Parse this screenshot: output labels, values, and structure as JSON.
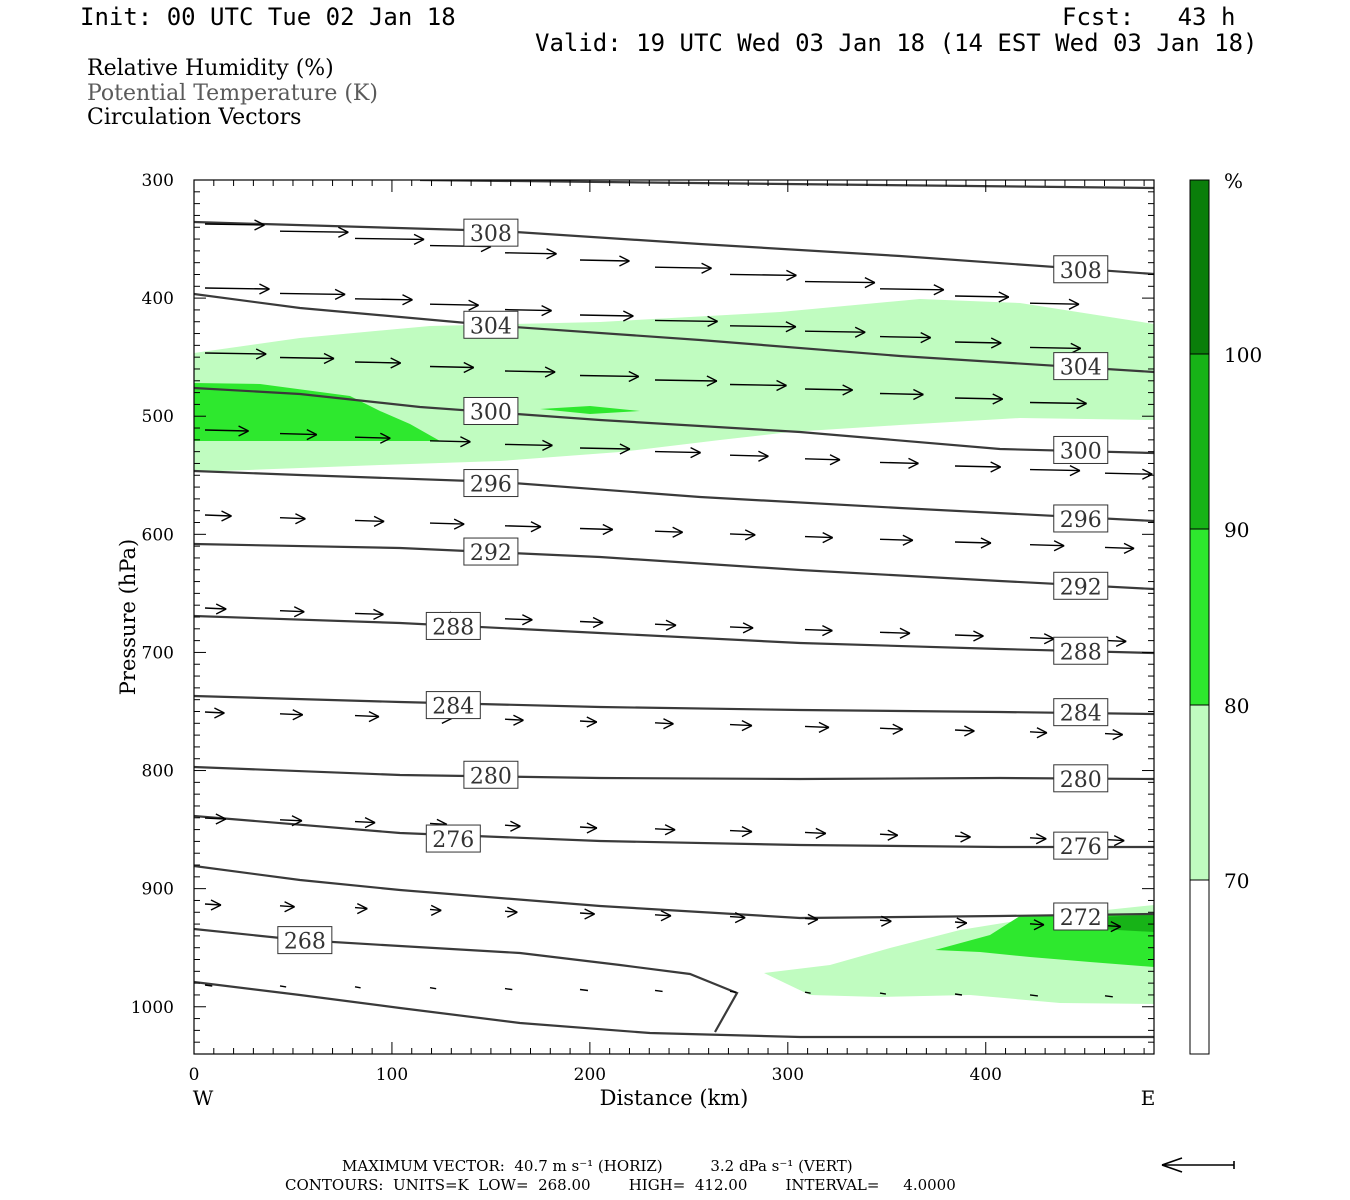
{
  "header": {
    "init": "Init: 00 UTC Tue 02 Jan 18",
    "fcst": "Fcst:   43 h",
    "valid": "Valid: 19 UTC Wed 03 Jan 18 (14 EST Wed 03 Jan 18)"
  },
  "fields": {
    "rh": "Relative Humidity (%)",
    "theta": "Potential Temperature (K)",
    "vectors": "Circulation Vectors"
  },
  "footer": {
    "max_vector": "MAXIMUM VECTOR:  40.7 m s⁻¹ (HORIZ)          3.2 dPa s⁻¹ (VERT)",
    "contours": "CONTOURS:  UNITS=K  LOW=  268.00        HIGH=  412.00        INTERVAL=     4.0000"
  },
  "colors": {
    "rh70": "#c0fcc0",
    "rh80": "#2ee82e",
    "rh90": "#17b317",
    "rh100": "#0a7e0a",
    "contour": "#3a3a3a"
  },
  "chart_data": {
    "type": "cross-section",
    "xlabel": "Distance (km)",
    "ylabel": "Pressure (hPa)",
    "xlim": [
      0,
      485
    ],
    "ylim": [
      1040,
      300
    ],
    "x_ticks": [
      "0",
      "100",
      "200",
      "300",
      "400"
    ],
    "y_ticks": [
      "300",
      "400",
      "500",
      "600",
      "700",
      "800",
      "900",
      "1000"
    ],
    "x_ends": [
      "W",
      "E"
    ],
    "colorbar": {
      "unit": "%",
      "levels": [
        "70",
        "80",
        "90",
        "100"
      ]
    },
    "theta_contour_labels": [
      {
        "value": "308",
        "x": 150,
        "p": 345
      },
      {
        "value": "308",
        "x": 448,
        "p": 376
      },
      {
        "value": "304",
        "x": 150,
        "p": 423
      },
      {
        "value": "304",
        "x": 448,
        "p": 458
      },
      {
        "value": "300",
        "x": 150,
        "p": 496
      },
      {
        "value": "300",
        "x": 448,
        "p": 529
      },
      {
        "value": "296",
        "x": 150,
        "p": 557
      },
      {
        "value": "296",
        "x": 448,
        "p": 587
      },
      {
        "value": "292",
        "x": 150,
        "p": 615
      },
      {
        "value": "292",
        "x": 448,
        "p": 644
      },
      {
        "value": "288",
        "x": 131,
        "p": 678
      },
      {
        "value": "288",
        "x": 448,
        "p": 699
      },
      {
        "value": "284",
        "x": 131,
        "p": 745
      },
      {
        "value": "284",
        "x": 448,
        "p": 751
      },
      {
        "value": "280",
        "x": 150,
        "p": 804
      },
      {
        "value": "280",
        "x": 448,
        "p": 807
      },
      {
        "value": "276",
        "x": 131,
        "p": 858
      },
      {
        "value": "276",
        "x": 448,
        "p": 864
      },
      {
        "value": "272",
        "x": 448,
        "p": 924
      },
      {
        "value": "268",
        "x": 56,
        "p": 944
      }
    ]
  }
}
